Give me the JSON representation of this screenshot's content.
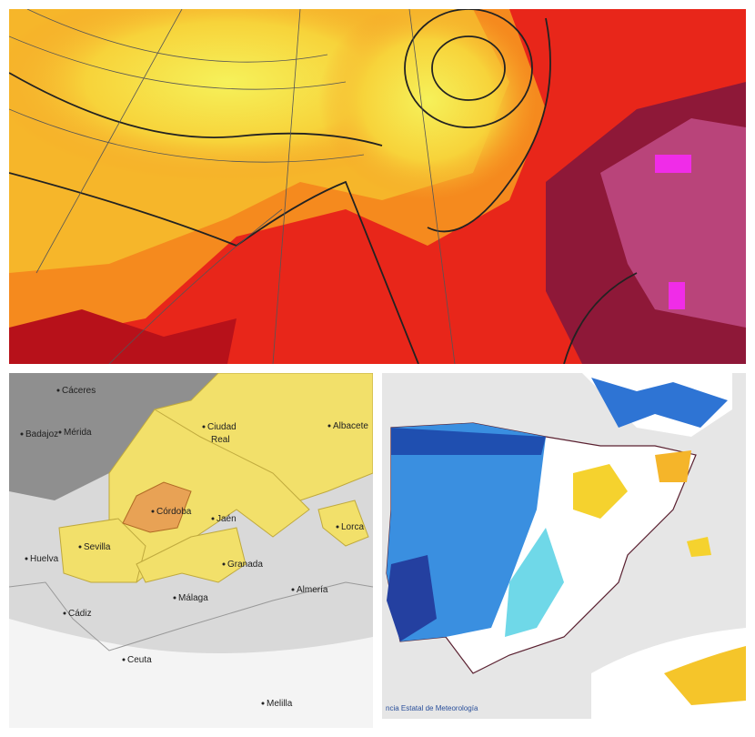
{
  "andalusia_map": {
    "cities": [
      "Cáceres",
      "Badajoz",
      "Mérida",
      [
        "Ciudad",
        "Real"
      ],
      "Albacete",
      "Córdoba",
      "Jaén",
      "Sevilla",
      "Huelva",
      "Granada",
      "Lorca",
      "Málaga",
      "Almería",
      "Cádiz",
      "Ceuta",
      "Melilla"
    ]
  },
  "anomaly_map": {
    "credit": "ncia Estatal de Meteorología"
  }
}
